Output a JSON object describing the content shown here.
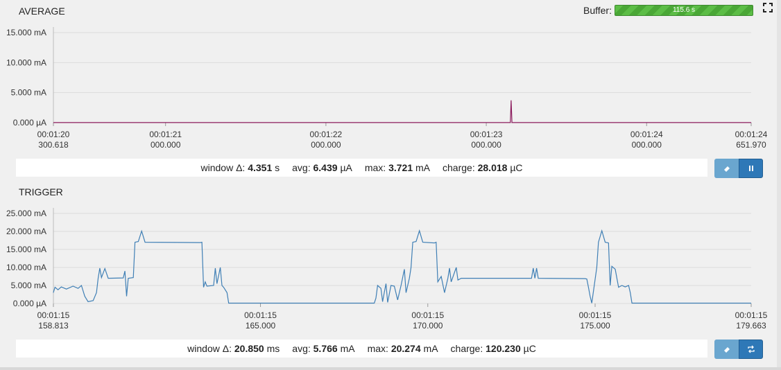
{
  "average": {
    "title": "AVERAGE",
    "stats": {
      "window_label": "window Δ:",
      "window_value": "4.351",
      "window_unit": "s",
      "avg_label": "avg:",
      "avg_value": "6.439",
      "avg_unit": "µA",
      "max_label": "max:",
      "max_value": "3.721",
      "max_unit": "mA",
      "charge_label": "charge:",
      "charge_value": "28.018",
      "charge_unit": "µC"
    },
    "buttons": {
      "clear_icon": "eraser-icon",
      "pause_icon": "pause-icon"
    }
  },
  "trigger": {
    "title": "TRIGGER",
    "stats": {
      "window_label": "window Δ:",
      "window_value": "20.850",
      "window_unit": "ms",
      "avg_label": "avg:",
      "avg_value": "5.766",
      "avg_unit": "mA",
      "max_label": "max:",
      "max_value": "20.274",
      "max_unit": "mA",
      "charge_label": "charge:",
      "charge_value": "120.230",
      "charge_unit": "µC"
    },
    "buttons": {
      "clear_icon": "eraser-icon",
      "repeat_icon": "repeat-icon"
    }
  },
  "buffer": {
    "label": "Buffer:",
    "value": "115.6 s"
  },
  "colors": {
    "average_line": "#8b1a5c",
    "trigger_line": "#3f7fb5",
    "grid": "#dcdcdc",
    "button_light": "#6aa6cf",
    "button_dark": "#2e78b7"
  },
  "chart_data": [
    {
      "type": "line",
      "title": "AVERAGE",
      "unit": "mA",
      "xlim": [
        80.300618,
        84.65197
      ],
      "ylim": [
        0,
        15
      ],
      "y_ticks": [
        0,
        5,
        10,
        15
      ],
      "y_tick_labels": [
        "0.000 µA",
        "5.000 mA",
        "10.000 mA",
        "15.000 mA"
      ],
      "x_ticks": [
        80.300618,
        81.0,
        82.0,
        83.0,
        84.0,
        84.65197
      ],
      "x_tick_labels": [
        [
          "00:01:20",
          "300.618"
        ],
        [
          "00:01:21",
          "000.000"
        ],
        [
          "00:01:22",
          "000.000"
        ],
        [
          "00:01:23",
          "000.000"
        ],
        [
          "00:01:24",
          "000.000"
        ],
        [
          "00:01:24",
          "651.970"
        ]
      ],
      "series": [
        {
          "points": [
            [
              80.300618,
              0.01
            ],
            [
              83.15,
              0.01
            ],
            [
              83.155,
              3.721
            ],
            [
              83.16,
              0.01
            ],
            [
              84.65197,
              0.01
            ]
          ]
        }
      ]
    },
    {
      "type": "line",
      "title": "TRIGGER",
      "unit": "mA",
      "xlim": [
        158.813,
        179.663
      ],
      "ylim": [
        0,
        25
      ],
      "y_ticks": [
        0,
        5,
        10,
        15,
        20,
        25
      ],
      "y_tick_labels": [
        "0.000 µA",
        "5.000 mA",
        "10.000 mA",
        "15.000 mA",
        "20.000 mA",
        "25.000 mA"
      ],
      "x_ticks": [
        158.813,
        165.0,
        170.0,
        175.0,
        179.663
      ],
      "x_tick_labels": [
        [
          "00:01:15",
          "158.813"
        ],
        [
          "00:01:15",
          "165.000"
        ],
        [
          "00:01:15",
          "170.000"
        ],
        [
          "00:01:15",
          "175.000"
        ],
        [
          "00:01:15",
          "179.663"
        ]
      ],
      "series": [
        {
          "points": [
            [
              158.81,
              3.0
            ],
            [
              158.86,
              4.5
            ],
            [
              158.95,
              3.8
            ],
            [
              159.05,
              4.6
            ],
            [
              159.2,
              4.0
            ],
            [
              159.4,
              4.8
            ],
            [
              159.55,
              4.2
            ],
            [
              159.65,
              5.0
            ],
            [
              159.75,
              2.0
            ],
            [
              159.85,
              0.5
            ],
            [
              160.0,
              0.8
            ],
            [
              160.1,
              3.0
            ],
            [
              160.15,
              7.0
            ],
            [
              160.2,
              9.8
            ],
            [
              160.25,
              7.2
            ],
            [
              160.35,
              9.7
            ],
            [
              160.45,
              7.0
            ],
            [
              160.9,
              7.1
            ],
            [
              160.95,
              9.0
            ],
            [
              161.0,
              2.0
            ],
            [
              161.05,
              7.0
            ],
            [
              161.2,
              7.2
            ],
            [
              161.25,
              17.0
            ],
            [
              161.35,
              17.2
            ],
            [
              161.45,
              20.1
            ],
            [
              161.55,
              17.0
            ],
            [
              163.2,
              16.9
            ],
            [
              163.25,
              17.0
            ],
            [
              163.3,
              4.5
            ],
            [
              163.35,
              6.0
            ],
            [
              163.4,
              4.8
            ],
            [
              163.6,
              5.0
            ],
            [
              163.65,
              9.8
            ],
            [
              163.7,
              5.5
            ],
            [
              163.8,
              10.0
            ],
            [
              163.85,
              5.0
            ],
            [
              163.9,
              4.5
            ],
            [
              164.0,
              3.0
            ],
            [
              164.05,
              0.1
            ],
            [
              168.4,
              0.1
            ],
            [
              168.45,
              1.5
            ],
            [
              168.5,
              5.0
            ],
            [
              168.6,
              4.2
            ],
            [
              168.65,
              0.5
            ],
            [
              168.7,
              3.0
            ],
            [
              168.75,
              5.5
            ],
            [
              168.8,
              0.3
            ],
            [
              168.9,
              5.0
            ],
            [
              169.0,
              4.8
            ],
            [
              169.1,
              1.0
            ],
            [
              169.2,
              5.0
            ],
            [
              169.3,
              9.5
            ],
            [
              169.35,
              3.0
            ],
            [
              169.45,
              7.0
            ],
            [
              169.5,
              10.0
            ],
            [
              169.55,
              17.0
            ],
            [
              169.65,
              17.2
            ],
            [
              169.75,
              20.2
            ],
            [
              169.85,
              17.0
            ],
            [
              170.2,
              16.8
            ],
            [
              170.25,
              17.0
            ],
            [
              170.3,
              6.0
            ],
            [
              170.4,
              7.5
            ],
            [
              170.5,
              3.0
            ],
            [
              170.6,
              7.0
            ],
            [
              170.65,
              9.8
            ],
            [
              170.7,
              6.0
            ],
            [
              170.85,
              10.0
            ],
            [
              170.9,
              6.5
            ],
            [
              171.0,
              7.0
            ],
            [
              173.1,
              7.0
            ],
            [
              173.15,
              9.8
            ],
            [
              173.2,
              7.0
            ],
            [
              173.25,
              9.8
            ],
            [
              173.3,
              7.0
            ],
            [
              174.7,
              6.9
            ],
            [
              174.75,
              6.8
            ],
            [
              174.8,
              4.5
            ],
            [
              174.85,
              2.0
            ],
            [
              174.9,
              0.1
            ],
            [
              175.05,
              10.0
            ],
            [
              175.1,
              17.0
            ],
            [
              175.2,
              20.2
            ],
            [
              175.3,
              17.0
            ],
            [
              175.4,
              16.8
            ],
            [
              175.45,
              5.0
            ],
            [
              175.5,
              10.3
            ],
            [
              175.6,
              9.5
            ],
            [
              175.7,
              4.5
            ],
            [
              175.8,
              5.0
            ],
            [
              175.9,
              4.6
            ],
            [
              176.0,
              5.0
            ],
            [
              176.05,
              3.0
            ],
            [
              176.1,
              0.1
            ],
            [
              179.663,
              0.1
            ]
          ]
        }
      ]
    }
  ]
}
